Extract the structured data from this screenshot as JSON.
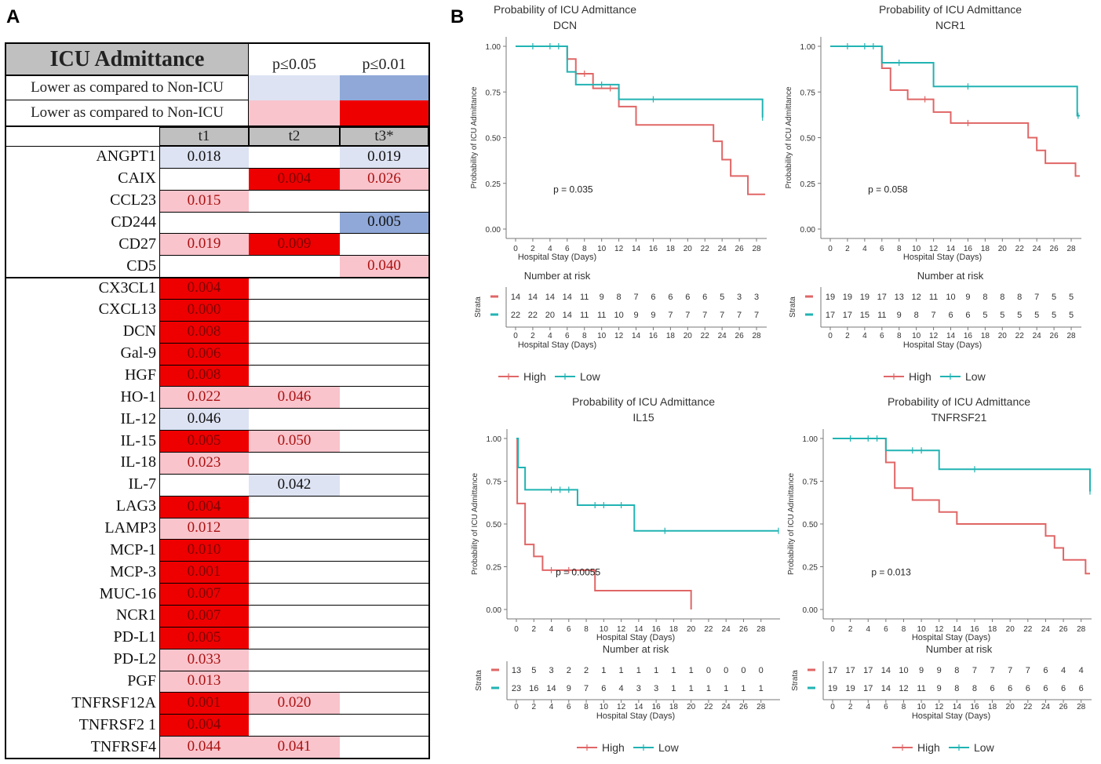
{
  "panels": {
    "a": "A",
    "b": "B"
  },
  "legend_table": {
    "title": "ICU Admittance",
    "p05": "p≤0.05",
    "p01": "p≤0.01",
    "row1_label": "Lower as compared to Non-ICU",
    "row2_label": "Lower as compared to Non-ICU",
    "col_headers": [
      "t1",
      "t2",
      "t3*"
    ]
  },
  "colors": {
    "light_blue": "#dde3f3",
    "mid_blue": "#8fa8d8",
    "light_red": "#f9c4cc",
    "red": "#ee0000",
    "high_line": "#e06666",
    "low_line": "#22b3b3",
    "header_gray": "#c0c0c0"
  },
  "table_rows": [
    {
      "label": "ANGPT1",
      "t1": {
        "v": "0.018",
        "c": "light_blue"
      },
      "t2": null,
      "t3": {
        "v": "0.019",
        "c": "light_blue"
      }
    },
    {
      "label": "CAIX",
      "t1": null,
      "t2": {
        "v": "0.004",
        "c": "red"
      },
      "t3": {
        "v": "0.026",
        "c": "light_red"
      }
    },
    {
      "label": "CCL23",
      "t1": {
        "v": "0.015",
        "c": "light_red"
      },
      "t2": null,
      "t3": null
    },
    {
      "label": "CD244",
      "t1": null,
      "t2": null,
      "t3": {
        "v": "0.005",
        "c": "mid_blue"
      }
    },
    {
      "label": "CD27",
      "t1": {
        "v": "0.019",
        "c": "light_red"
      },
      "t2": {
        "v": "0.009",
        "c": "red"
      },
      "t3": null
    },
    {
      "label": "CD5",
      "t1": null,
      "t2": null,
      "t3": {
        "v": "0.040",
        "c": "light_red"
      }
    },
    {
      "label": "CX3CL1",
      "t1": {
        "v": "0.004",
        "c": "red"
      },
      "t2": null,
      "t3": null
    },
    {
      "label": "CXCL13",
      "t1": {
        "v": "0.000",
        "c": "red"
      },
      "t2": null,
      "t3": null
    },
    {
      "label": "DCN",
      "t1": {
        "v": "0.008",
        "c": "red"
      },
      "t2": null,
      "t3": null
    },
    {
      "label": "Gal-9",
      "t1": {
        "v": "0.006",
        "c": "red"
      },
      "t2": null,
      "t3": null
    },
    {
      "label": "HGF",
      "t1": {
        "v": "0.008",
        "c": "red"
      },
      "t2": null,
      "t3": null
    },
    {
      "label": "HO-1",
      "t1": {
        "v": "0.022",
        "c": "light_red"
      },
      "t2": {
        "v": "0.046",
        "c": "light_red"
      },
      "t3": null
    },
    {
      "label": "IL-12",
      "t1": {
        "v": "0.046",
        "c": "light_blue"
      },
      "t2": null,
      "t3": null
    },
    {
      "label": "IL-15",
      "t1": {
        "v": "0.005",
        "c": "red"
      },
      "t2": {
        "v": "0.050",
        "c": "light_red"
      },
      "t3": null
    },
    {
      "label": "IL-18",
      "t1": {
        "v": "0.023",
        "c": "light_red"
      },
      "t2": null,
      "t3": null
    },
    {
      "label": "IL-7",
      "t1": null,
      "t2": {
        "v": "0.042",
        "c": "light_blue"
      },
      "t3": null
    },
    {
      "label": "LAG3",
      "t1": {
        "v": "0.004",
        "c": "red"
      },
      "t2": null,
      "t3": null
    },
    {
      "label": "LAMP3",
      "t1": {
        "v": "0.012",
        "c": "light_red"
      },
      "t2": null,
      "t3": null
    },
    {
      "label": "MCP-1",
      "t1": {
        "v": "0.010",
        "c": "red"
      },
      "t2": null,
      "t3": null
    },
    {
      "label": "MCP-3",
      "t1": {
        "v": "0.001",
        "c": "red"
      },
      "t2": null,
      "t3": null
    },
    {
      "label": "MUC-16",
      "t1": {
        "v": "0.007",
        "c": "red"
      },
      "t2": null,
      "t3": null
    },
    {
      "label": "NCR1",
      "t1": {
        "v": "0.007",
        "c": "red"
      },
      "t2": null,
      "t3": null
    },
    {
      "label": "PD-L1",
      "t1": {
        "v": "0.005",
        "c": "red"
      },
      "t2": null,
      "t3": null
    },
    {
      "label": "PD-L2",
      "t1": {
        "v": "0.033",
        "c": "light_red"
      },
      "t2": null,
      "t3": null
    },
    {
      "label": "PGF",
      "t1": {
        "v": "0.013",
        "c": "light_red"
      },
      "t2": null,
      "t3": null
    },
    {
      "label": "TNFRSF12A",
      "t1": {
        "v": "0.001",
        "c": "red"
      },
      "t2": {
        "v": "0.020",
        "c": "light_red"
      },
      "t3": null
    },
    {
      "label": "TNFRSF2 1",
      "t1": {
        "v": "0.004",
        "c": "red"
      },
      "t2": null,
      "t3": null
    },
    {
      "label": "TNFRSF4",
      "t1": {
        "v": "0.044",
        "c": "light_red"
      },
      "t2": {
        "v": "0.041",
        "c": "light_red"
      },
      "t3": null
    }
  ],
  "chart_data": [
    {
      "type": "line",
      "title": "Probability of ICU Admittance",
      "subtitle": "DCN",
      "xlabel": "Hospital Stay (Days)",
      "ylabel": "Probability of ICU Admittance",
      "xlim": [
        0,
        29
      ],
      "ylim": [
        0,
        1
      ],
      "xticks": [
        0,
        2,
        4,
        6,
        8,
        10,
        12,
        14,
        16,
        18,
        20,
        22,
        24,
        26,
        28
      ],
      "yticks": [
        "0.00",
        "0.25",
        "0.50",
        "0.75",
        "1.00"
      ],
      "pvalue": "p = 0.035",
      "series": [
        {
          "name": "High",
          "color": "#e06666",
          "steps": [
            [
              0,
              1.0
            ],
            [
              6,
              0.93
            ],
            [
              7,
              0.85
            ],
            [
              9,
              0.77
            ],
            [
              12,
              0.67
            ],
            [
              14,
              0.57
            ],
            [
              23,
              0.48
            ],
            [
              24,
              0.38
            ],
            [
              25,
              0.29
            ],
            [
              27,
              0.19
            ],
            [
              29,
              0.19
            ]
          ],
          "censors": [
            [
              8,
              0.85
            ],
            [
              11,
              0.77
            ]
          ]
        },
        {
          "name": "Low",
          "color": "#22b3b3",
          "steps": [
            [
              0,
              1.0
            ],
            [
              6,
              0.86
            ],
            [
              7,
              0.79
            ],
            [
              12,
              0.71
            ],
            [
              28,
              0.71
            ],
            [
              28.7,
              0.61
            ]
          ],
          "censors": [
            [
              2,
              1.0
            ],
            [
              4,
              1.0
            ],
            [
              5,
              1.0
            ],
            [
              10,
              0.79
            ],
            [
              16,
              0.71
            ],
            [
              28.7,
              0.61
            ]
          ]
        }
      ],
      "risk_title": "Number at risk",
      "risk_label": "Strata",
      "risk_high": [
        "14",
        "14",
        "14",
        "14",
        "11",
        "9",
        "8",
        "7",
        "6",
        "6",
        "6",
        "6",
        "5",
        "3",
        "3"
      ],
      "risk_low": [
        "22",
        "22",
        "20",
        "14",
        "11",
        "11",
        "10",
        "9",
        "9",
        "7",
        "7",
        "7",
        "7",
        "7",
        "7"
      ],
      "legend": [
        "High",
        "Low"
      ]
    },
    {
      "type": "line",
      "title": "Probability of ICU Admittance",
      "subtitle": "NCR1",
      "xlabel": "Hospital Stay (Days)",
      "ylabel": "Probability of ICU Admittance",
      "xlim": [
        0,
        29
      ],
      "ylim": [
        0,
        1
      ],
      "xticks": [
        0,
        2,
        4,
        6,
        8,
        10,
        12,
        14,
        16,
        18,
        20,
        22,
        24,
        26,
        28
      ],
      "yticks": [
        "0.00",
        "0.25",
        "0.50",
        "0.75",
        "1.00"
      ],
      "pvalue": "p = 0.058",
      "series": [
        {
          "name": "High",
          "color": "#e06666",
          "steps": [
            [
              0,
              1.0
            ],
            [
              6,
              0.88
            ],
            [
              7,
              0.76
            ],
            [
              9,
              0.71
            ],
            [
              12,
              0.64
            ],
            [
              14,
              0.58
            ],
            [
              23,
              0.5
            ],
            [
              24,
              0.43
            ],
            [
              25,
              0.36
            ],
            [
              28.5,
              0.29
            ],
            [
              29,
              0.29
            ]
          ],
          "censors": [
            [
              11,
              0.71
            ],
            [
              16,
              0.58
            ]
          ]
        },
        {
          "name": "Low",
          "color": "#22b3b3",
          "steps": [
            [
              0,
              1.0
            ],
            [
              6,
              0.91
            ],
            [
              12,
              0.78
            ],
            [
              28,
              0.78
            ],
            [
              28.7,
              0.62
            ],
            [
              29,
              0.62
            ]
          ],
          "censors": [
            [
              2,
              1.0
            ],
            [
              4,
              1.0
            ],
            [
              5,
              1.0
            ],
            [
              8,
              0.91
            ],
            [
              16,
              0.78
            ],
            [
              28.8,
              0.62
            ]
          ]
        }
      ],
      "risk_title": "Number at risk",
      "risk_label": "Strata",
      "risk_high": [
        "19",
        "19",
        "19",
        "17",
        "13",
        "12",
        "11",
        "10",
        "9",
        "8",
        "8",
        "8",
        "7",
        "5",
        "5"
      ],
      "risk_low": [
        "17",
        "17",
        "15",
        "11",
        "9",
        "8",
        "7",
        "6",
        "6",
        "5",
        "5",
        "5",
        "5",
        "5",
        "5"
      ],
      "legend": [
        "High",
        "Low"
      ]
    },
    {
      "type": "line",
      "title": "Probability of ICU Admittance",
      "subtitle": "IL15",
      "xlabel": "Hospital Stay (Days)",
      "ylabel": "Probability of ICU Admittance",
      "xlim": [
        0,
        30
      ],
      "ylim": [
        0,
        1
      ],
      "xticks": [
        0,
        2,
        4,
        6,
        8,
        10,
        12,
        14,
        16,
        18,
        20,
        22,
        24,
        26,
        28
      ],
      "yticks": [
        "0.00",
        "0.25",
        "0.50",
        "0.75",
        "1.00"
      ],
      "pvalue": "p = 0.0055",
      "series": [
        {
          "name": "High",
          "color": "#e06666",
          "steps": [
            [
              0,
              1.0
            ],
            [
              0.1,
              0.62
            ],
            [
              1,
              0.38
            ],
            [
              2,
              0.31
            ],
            [
              3,
              0.23
            ],
            [
              9,
              0.11
            ],
            [
              20,
              0.11
            ],
            [
              20,
              0.0
            ]
          ],
          "censors": [
            [
              4,
              0.23
            ],
            [
              6,
              0.23
            ]
          ]
        },
        {
          "name": "Low",
          "color": "#22b3b3",
          "steps": [
            [
              0,
              1.0
            ],
            [
              0.2,
              0.83
            ],
            [
              1,
              0.7
            ],
            [
              7,
              0.61
            ],
            [
              13.5,
              0.46
            ],
            [
              30,
              0.46
            ]
          ],
          "censors": [
            [
              4,
              0.7
            ],
            [
              5,
              0.7
            ],
            [
              6,
              0.7
            ],
            [
              9,
              0.61
            ],
            [
              10,
              0.61
            ],
            [
              12,
              0.61
            ],
            [
              17,
              0.46
            ],
            [
              30,
              0.46
            ]
          ]
        }
      ],
      "risk_title": "Number at risk",
      "risk_label": "Strata",
      "risk_high": [
        "13",
        "5",
        "3",
        "2",
        "2",
        "1",
        "1",
        "1",
        "1",
        "1",
        "1",
        "0",
        "0",
        "0",
        "0"
      ],
      "risk_low": [
        "23",
        "16",
        "14",
        "9",
        "7",
        "6",
        "4",
        "3",
        "3",
        "1",
        "1",
        "1",
        "1",
        "1",
        "1"
      ],
      "legend": [
        "High",
        "Low"
      ]
    },
    {
      "type": "line",
      "title": "Probability of ICU Admittance",
      "subtitle": "TNFRSF21",
      "xlabel": "Hospital Stay (Days)",
      "ylabel": "Probability of ICU Admittance",
      "xlim": [
        0,
        29
      ],
      "ylim": [
        0,
        1
      ],
      "xticks": [
        0,
        2,
        4,
        6,
        8,
        10,
        12,
        14,
        16,
        18,
        20,
        22,
        24,
        26,
        28
      ],
      "yticks": [
        "0.00",
        "0.25",
        "0.50",
        "0.75",
        "1.00"
      ],
      "pvalue": "p = 0.013",
      "series": [
        {
          "name": "High",
          "color": "#e06666",
          "steps": [
            [
              0,
              1.0
            ],
            [
              6,
              0.86
            ],
            [
              7,
              0.71
            ],
            [
              9,
              0.64
            ],
            [
              12,
              0.57
            ],
            [
              14,
              0.5
            ],
            [
              24,
              0.43
            ],
            [
              25,
              0.36
            ],
            [
              26,
              0.29
            ],
            [
              28.5,
              0.21
            ],
            [
              29,
              0.21
            ]
          ],
          "censors": []
        },
        {
          "name": "Low",
          "color": "#22b3b3",
          "steps": [
            [
              0,
              1.0
            ],
            [
              6,
              0.93
            ],
            [
              12,
              0.82
            ],
            [
              28.5,
              0.82
            ],
            [
              29,
              0.69
            ]
          ],
          "censors": [
            [
              2,
              1.0
            ],
            [
              4,
              1.0
            ],
            [
              5,
              1.0
            ],
            [
              9,
              0.93
            ],
            [
              10,
              0.93
            ],
            [
              16,
              0.82
            ],
            [
              29,
              0.69
            ]
          ]
        }
      ],
      "risk_title": "Number at risk",
      "risk_label": "Strata",
      "risk_high": [
        "17",
        "17",
        "17",
        "14",
        "10",
        "9",
        "9",
        "8",
        "7",
        "7",
        "7",
        "7",
        "6",
        "4",
        "4"
      ],
      "risk_low": [
        "19",
        "19",
        "17",
        "14",
        "12",
        "11",
        "9",
        "8",
        "8",
        "6",
        "6",
        "6",
        "6",
        "6",
        "6"
      ],
      "legend": [
        "High",
        "Low"
      ]
    }
  ]
}
